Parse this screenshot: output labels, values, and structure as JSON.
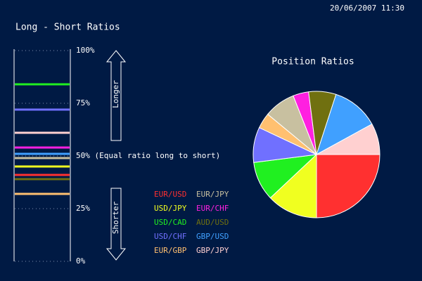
{
  "timestamp": "20/06/2007 11:30",
  "chart_data": [
    {
      "type": "gauge",
      "title": "Long - Short Ratios",
      "categories": [
        "EUR/USD",
        "USD/JPY",
        "USD/CAD",
        "USD/CHF",
        "EUR/GBP",
        "EUR/JPY",
        "EUR/CHF",
        "AUD/USD",
        "GBP/USD",
        "GBP/JPY"
      ],
      "colors": [
        "#ff3030",
        "#f0ff20",
        "#20f020",
        "#7070ff",
        "#ffc070",
        "#c8c0a0",
        "#ff20e0",
        "#707010",
        "#40a0ff",
        "#ffd0d0"
      ],
      "values": [
        41,
        45,
        84,
        72,
        32,
        49,
        54,
        39,
        51,
        61
      ],
      "ylim": [
        0,
        100
      ],
      "yticks": [
        {
          "value": 0,
          "label": "0%"
        },
        {
          "value": 25,
          "label": "25%"
        },
        {
          "value": 50,
          "label": "50% (Equal ratio long to short)"
        },
        {
          "value": 75,
          "label": "75%"
        },
        {
          "value": 100,
          "label": "100%"
        }
      ],
      "up_label": "Longer",
      "down_label": "Shorter"
    },
    {
      "type": "pie",
      "title": "Position Ratios",
      "categories": [
        "EUR/USD",
        "USD/JPY",
        "USD/CAD",
        "USD/CHF",
        "EUR/GBP",
        "EUR/JPY",
        "EUR/CHF",
        "AUD/USD",
        "GBP/USD",
        "GBP/JPY"
      ],
      "colors": [
        "#ff3030",
        "#f0ff20",
        "#20f020",
        "#7070ff",
        "#ffc070",
        "#c8c0a0",
        "#ff20e0",
        "#707010",
        "#40a0ff",
        "#ffd0d0"
      ],
      "values": [
        25,
        13,
        10,
        9,
        4,
        8,
        4,
        7,
        12,
        8
      ]
    }
  ]
}
